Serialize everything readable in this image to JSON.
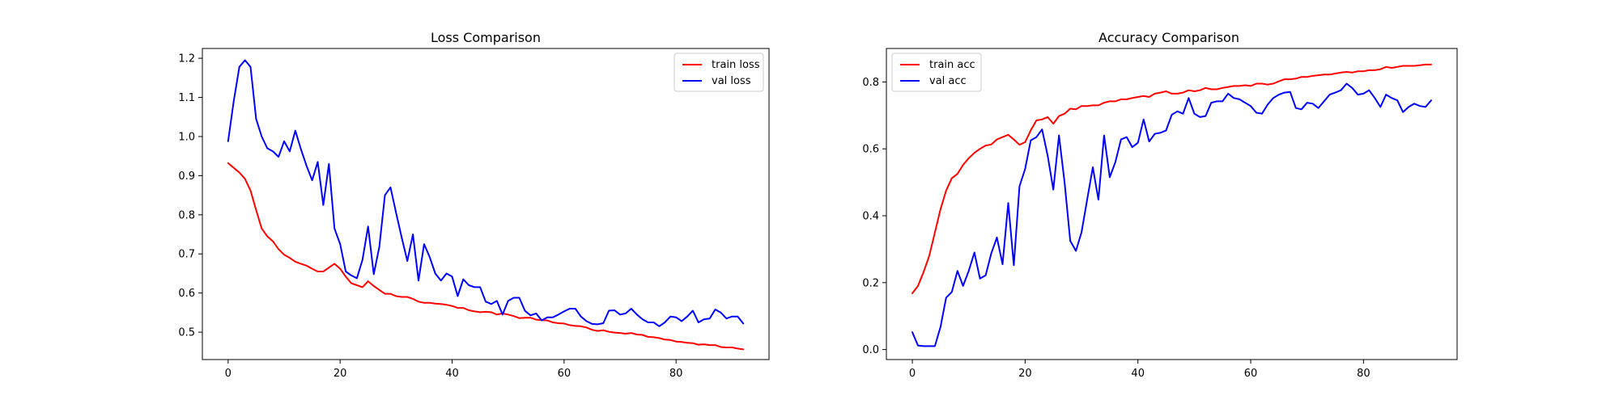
{
  "chart_data": [
    {
      "type": "line",
      "title": "Loss Comparison",
      "xlabel": "",
      "ylabel": "",
      "xlim": [
        -4.6,
        96.6
      ],
      "ylim": [
        0.43,
        1.225
      ],
      "xticks": [
        0,
        20,
        40,
        60,
        80
      ],
      "xtick_labels": [
        "0",
        "20",
        "40",
        "60",
        "80"
      ],
      "yticks": [
        0.5,
        0.6,
        0.7,
        0.8,
        0.9,
        1.0,
        1.1,
        1.2
      ],
      "ytick_labels": [
        "0.5",
        "0.6",
        "0.7",
        "0.8",
        "0.9",
        "1.0",
        "1.1",
        "1.2"
      ],
      "grid": false,
      "legend": "top-right",
      "series": [
        {
          "name": "train loss",
          "color": "#ff0000",
          "x": [
            0,
            1,
            2,
            3,
            4,
            5,
            6,
            7,
            8,
            9,
            10,
            11,
            12,
            13,
            14,
            15,
            16,
            17,
            18,
            19,
            20,
            21,
            22,
            23,
            24,
            25,
            26,
            27,
            28,
            29,
            30,
            31,
            32,
            33,
            34,
            35,
            36,
            37,
            38,
            39,
            40,
            41,
            42,
            43,
            44,
            45,
            46,
            47,
            48,
            49,
            50,
            51,
            52,
            53,
            54,
            55,
            56,
            57,
            58,
            59,
            60,
            61,
            62,
            63,
            64,
            65,
            66,
            67,
            68,
            69,
            70,
            71,
            72,
            73,
            74,
            75,
            76,
            77,
            78,
            79,
            80,
            81,
            82,
            83,
            84,
            85,
            86,
            87,
            88,
            89,
            90,
            91,
            92
          ],
          "y": [
            0.932,
            0.92,
            0.908,
            0.892,
            0.862,
            0.812,
            0.765,
            0.745,
            0.732,
            0.712,
            0.698,
            0.69,
            0.68,
            0.675,
            0.67,
            0.662,
            0.655,
            0.655,
            0.665,
            0.675,
            0.662,
            0.642,
            0.625,
            0.62,
            0.615,
            0.63,
            0.618,
            0.608,
            0.598,
            0.598,
            0.592,
            0.59,
            0.59,
            0.585,
            0.578,
            0.575,
            0.575,
            0.573,
            0.572,
            0.57,
            0.567,
            0.562,
            0.562,
            0.556,
            0.553,
            0.551,
            0.552,
            0.551,
            0.545,
            0.548,
            0.545,
            0.541,
            0.536,
            0.537,
            0.537,
            0.532,
            0.531,
            0.53,
            0.525,
            0.523,
            0.522,
            0.518,
            0.516,
            0.515,
            0.512,
            0.506,
            0.503,
            0.505,
            0.501,
            0.499,
            0.498,
            0.496,
            0.498,
            0.494,
            0.493,
            0.488,
            0.487,
            0.485,
            0.481,
            0.48,
            0.476,
            0.475,
            0.473,
            0.472,
            0.468,
            0.469,
            0.467,
            0.467,
            0.462,
            0.461,
            0.461,
            0.458,
            0.456
          ]
        },
        {
          "name": "val loss",
          "color": "#0000ff",
          "x": [
            0,
            1,
            2,
            3,
            4,
            5,
            6,
            7,
            8,
            9,
            10,
            11,
            12,
            13,
            14,
            15,
            16,
            17,
            18,
            19,
            20,
            21,
            22,
            23,
            24,
            25,
            26,
            27,
            28,
            29,
            30,
            31,
            32,
            33,
            34,
            35,
            36,
            37,
            38,
            39,
            40,
            41,
            42,
            43,
            44,
            45,
            46,
            47,
            48,
            49,
            50,
            51,
            52,
            53,
            54,
            55,
            56,
            57,
            58,
            59,
            60,
            61,
            62,
            63,
            64,
            65,
            66,
            67,
            68,
            69,
            70,
            71,
            72,
            73,
            74,
            75,
            76,
            77,
            78,
            79,
            80,
            81,
            82,
            83,
            84,
            85,
            86,
            87,
            88,
            89,
            90,
            91,
            92
          ],
          "y": [
            0.988,
            1.09,
            1.178,
            1.195,
            1.178,
            1.045,
            1.0,
            0.97,
            0.962,
            0.948,
            0.988,
            0.962,
            1.015,
            0.968,
            0.925,
            0.888,
            0.935,
            0.825,
            0.93,
            0.765,
            0.725,
            0.655,
            0.645,
            0.638,
            0.685,
            0.77,
            0.648,
            0.718,
            0.85,
            0.87,
            0.805,
            0.742,
            0.682,
            0.75,
            0.632,
            0.725,
            0.692,
            0.65,
            0.632,
            0.65,
            0.642,
            0.592,
            0.635,
            0.62,
            0.615,
            0.615,
            0.578,
            0.572,
            0.58,
            0.545,
            0.58,
            0.588,
            0.588,
            0.555,
            0.543,
            0.548,
            0.53,
            0.538,
            0.538,
            0.545,
            0.553,
            0.56,
            0.56,
            0.54,
            0.528,
            0.521,
            0.52,
            0.523,
            0.555,
            0.556,
            0.545,
            0.548,
            0.56,
            0.545,
            0.533,
            0.525,
            0.525,
            0.515,
            0.525,
            0.54,
            0.538,
            0.528,
            0.54,
            0.555,
            0.525,
            0.533,
            0.535,
            0.558,
            0.55,
            0.535,
            0.54,
            0.54,
            0.522
          ]
        }
      ]
    },
    {
      "type": "line",
      "title": "Accuracy Comparison",
      "xlabel": "",
      "ylabel": "",
      "xlim": [
        -4.6,
        96.6
      ],
      "ylim": [
        -0.03,
        0.9
      ],
      "xticks": [
        0,
        20,
        40,
        60,
        80
      ],
      "xtick_labels": [
        "0",
        "20",
        "40",
        "60",
        "80"
      ],
      "yticks": [
        0.0,
        0.2,
        0.4,
        0.6,
        0.8
      ],
      "ytick_labels": [
        "0.0",
        "0.2",
        "0.4",
        "0.6",
        "0.8"
      ],
      "grid": false,
      "legend": "top-left",
      "series": [
        {
          "name": "train acc",
          "color": "#ff0000",
          "x": [
            0,
            1,
            2,
            3,
            4,
            5,
            6,
            7,
            8,
            9,
            10,
            11,
            12,
            13,
            14,
            15,
            16,
            17,
            18,
            19,
            20,
            21,
            22,
            23,
            24,
            25,
            26,
            27,
            28,
            29,
            30,
            31,
            32,
            33,
            34,
            35,
            36,
            37,
            38,
            39,
            40,
            41,
            42,
            43,
            44,
            45,
            46,
            47,
            48,
            49,
            50,
            51,
            52,
            53,
            54,
            55,
            56,
            57,
            58,
            59,
            60,
            61,
            62,
            63,
            64,
            65,
            66,
            67,
            68,
            69,
            70,
            71,
            72,
            73,
            74,
            75,
            76,
            77,
            78,
            79,
            80,
            81,
            82,
            83,
            84,
            85,
            86,
            87,
            88,
            89,
            90,
            91,
            92
          ],
          "y": [
            0.168,
            0.19,
            0.232,
            0.28,
            0.35,
            0.42,
            0.475,
            0.512,
            0.525,
            0.552,
            0.572,
            0.588,
            0.6,
            0.61,
            0.613,
            0.628,
            0.635,
            0.642,
            0.628,
            0.612,
            0.62,
            0.655,
            0.685,
            0.688,
            0.695,
            0.675,
            0.698,
            0.705,
            0.72,
            0.718,
            0.728,
            0.728,
            0.73,
            0.73,
            0.738,
            0.742,
            0.742,
            0.748,
            0.748,
            0.752,
            0.755,
            0.758,
            0.755,
            0.765,
            0.768,
            0.772,
            0.765,
            0.765,
            0.768,
            0.775,
            0.772,
            0.775,
            0.782,
            0.778,
            0.778,
            0.782,
            0.785,
            0.788,
            0.788,
            0.79,
            0.788,
            0.795,
            0.795,
            0.792,
            0.795,
            0.802,
            0.808,
            0.808,
            0.81,
            0.815,
            0.815,
            0.818,
            0.82,
            0.822,
            0.822,
            0.825,
            0.828,
            0.83,
            0.828,
            0.832,
            0.832,
            0.835,
            0.835,
            0.838,
            0.845,
            0.842,
            0.845,
            0.848,
            0.848,
            0.848,
            0.85,
            0.852,
            0.852
          ]
        },
        {
          "name": "val acc",
          "color": "#0000ff",
          "x": [
            0,
            1,
            2,
            3,
            4,
            5,
            6,
            7,
            8,
            9,
            10,
            11,
            12,
            13,
            14,
            15,
            16,
            17,
            18,
            19,
            20,
            21,
            22,
            23,
            24,
            25,
            26,
            27,
            28,
            29,
            30,
            31,
            32,
            33,
            34,
            35,
            36,
            37,
            38,
            39,
            40,
            41,
            42,
            43,
            44,
            45,
            46,
            47,
            48,
            49,
            50,
            51,
            52,
            53,
            54,
            55,
            56,
            57,
            58,
            59,
            60,
            61,
            62,
            63,
            64,
            65,
            66,
            67,
            68,
            69,
            70,
            71,
            72,
            73,
            74,
            75,
            76,
            77,
            78,
            79,
            80,
            81,
            82,
            83,
            84,
            85,
            86,
            87,
            88,
            89,
            90,
            91,
            92
          ],
          "y": [
            0.052,
            0.012,
            0.01,
            0.01,
            0.01,
            0.068,
            0.155,
            0.172,
            0.235,
            0.19,
            0.235,
            0.29,
            0.212,
            0.222,
            0.288,
            0.335,
            0.255,
            0.438,
            0.252,
            0.488,
            0.54,
            0.625,
            0.635,
            0.658,
            0.58,
            0.478,
            0.64,
            0.5,
            0.325,
            0.295,
            0.35,
            0.448,
            0.545,
            0.448,
            0.64,
            0.515,
            0.56,
            0.628,
            0.635,
            0.605,
            0.618,
            0.688,
            0.622,
            0.645,
            0.648,
            0.655,
            0.702,
            0.712,
            0.705,
            0.752,
            0.705,
            0.695,
            0.698,
            0.738,
            0.742,
            0.742,
            0.765,
            0.752,
            0.748,
            0.738,
            0.728,
            0.708,
            0.705,
            0.732,
            0.752,
            0.762,
            0.768,
            0.77,
            0.722,
            0.718,
            0.738,
            0.735,
            0.722,
            0.742,
            0.762,
            0.768,
            0.775,
            0.795,
            0.782,
            0.762,
            0.765,
            0.775,
            0.752,
            0.725,
            0.762,
            0.752,
            0.745,
            0.71,
            0.725,
            0.735,
            0.728,
            0.725,
            0.745
          ]
        }
      ]
    }
  ]
}
